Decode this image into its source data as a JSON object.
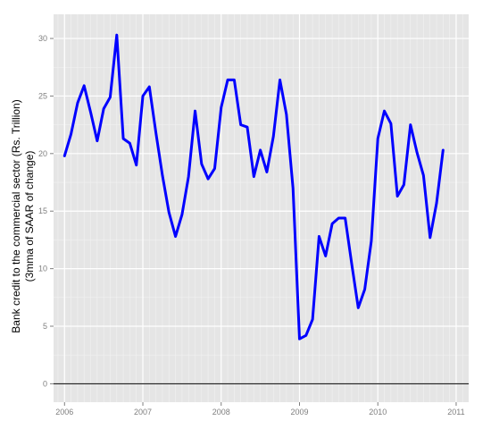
{
  "chart_data": {
    "type": "line",
    "title": "",
    "xlabel": "",
    "ylabel_line1": "Bank credit to the commercial sector (Rs. Trillion)",
    "ylabel_line2": "(3mma of SAAR of change)",
    "xlim": [
      2005.86,
      2011.16
    ],
    "ylim": [
      -1.6,
      32.1
    ],
    "x_ticks": [
      2006,
      2007,
      2008,
      2009,
      2010,
      2011
    ],
    "x_tick_labels": [
      "2006",
      "2007",
      "2008",
      "2009",
      "2010",
      "2011"
    ],
    "y_ticks": [
      0,
      5,
      10,
      15,
      20,
      25,
      30
    ],
    "y_tick_labels": [
      "0",
      "5",
      "10",
      "15",
      "20",
      "25",
      "30"
    ],
    "reference_line_y": 0,
    "grid": true,
    "legend": "none",
    "colors": {
      "line": "#0000ff",
      "panel_background": "#e5e5e5",
      "grid_major": "#ffffff",
      "grid_minor": "#f2f2f2",
      "reference_line": "#000000"
    },
    "series": [
      {
        "x": [
          2006.0,
          2006.083,
          2006.167,
          2006.25,
          2006.333,
          2006.417,
          2006.5,
          2006.583,
          2006.667,
          2006.75,
          2006.833,
          2006.917,
          2007.0,
          2007.083,
          2007.167,
          2007.25,
          2007.333,
          2007.417,
          2007.5,
          2007.583,
          2007.667,
          2007.75,
          2007.833,
          2007.917,
          2008.0,
          2008.083,
          2008.167,
          2008.25,
          2008.333,
          2008.417,
          2008.5,
          2008.583,
          2008.667,
          2008.75,
          2008.833,
          2008.917,
          2009.0,
          2009.083,
          2009.167,
          2009.25,
          2009.333,
          2009.417,
          2009.5,
          2009.583,
          2009.667,
          2009.75,
          2009.833,
          2009.917,
          2010.0,
          2010.083,
          2010.167,
          2010.25,
          2010.333,
          2010.417,
          2010.5,
          2010.583,
          2010.667,
          2010.75,
          2010.833
        ],
        "y": [
          19.8,
          21.7,
          24.4,
          25.9,
          23.6,
          21.1,
          23.9,
          24.9,
          30.3,
          21.3,
          20.9,
          19.0,
          25.0,
          25.8,
          21.8,
          18.1,
          14.9,
          12.8,
          14.7,
          18.0,
          23.7,
          19.1,
          17.8,
          18.7,
          24.0,
          26.4,
          26.4,
          22.5,
          22.3,
          18.0,
          20.3,
          18.4,
          21.5,
          26.4,
          23.4,
          17.0,
          3.9,
          4.2,
          5.6,
          12.8,
          11.1,
          13.9,
          14.4,
          14.4,
          10.4,
          6.6,
          8.2,
          12.4,
          21.3,
          23.7,
          22.6,
          16.3,
          17.3,
          22.5,
          20.1,
          18.1,
          12.7,
          15.7,
          20.3
        ]
      }
    ]
  }
}
